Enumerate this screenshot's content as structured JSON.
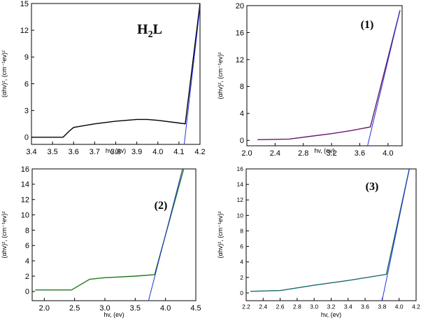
{
  "chart_data": [
    {
      "type": "line",
      "annotation": "H",
      "annotation_sub": "2",
      "annotation_tail": "L",
      "xlabel": "hv, (ev)",
      "ylabel": "(αhv)², (cm⁻¹ev)²",
      "xlim": [
        3.4,
        4.2
      ],
      "ylim": [
        -0.8,
        15
      ],
      "xticks": [
        3.4,
        3.5,
        3.6,
        3.7,
        3.8,
        3.9,
        4.0,
        4.1,
        4.2
      ],
      "yticks": [
        0,
        3,
        6,
        9,
        12,
        15
      ],
      "xtick_labels": [
        "3.4",
        "3.5",
        "3.6",
        "3.7",
        "3.8",
        "3.9",
        "4.0",
        "4.1",
        "4.2"
      ],
      "ytick_labels": [
        "0",
        "3",
        "6",
        "9",
        "12",
        "15"
      ],
      "series": [
        {
          "color": "#000000",
          "x": [
            3.4,
            3.55,
            3.58,
            3.6,
            3.7,
            3.8,
            3.9,
            3.95,
            4.0,
            4.1,
            4.13,
            4.2
          ],
          "y": [
            0,
            0,
            0.7,
            1.1,
            1.5,
            1.8,
            2.0,
            2.0,
            1.9,
            1.6,
            1.5,
            15
          ]
        },
        {
          "color": "#2233dd",
          "x": [
            4.125,
            4.2
          ],
          "y": [
            -0.8,
            14.6
          ]
        }
      ]
    },
    {
      "type": "line",
      "annotation": "(1)",
      "xlabel": "hv, (ev)",
      "ylabel": "(αhv)², (cm⁻¹ev)²",
      "xlim": [
        2.0,
        4.2
      ],
      "ylim": [
        -0.8,
        20
      ],
      "xticks": [
        2.0,
        2.4,
        2.8,
        3.2,
        3.6,
        4.0
      ],
      "yticks": [
        0,
        4,
        8,
        12,
        16,
        20
      ],
      "xtick_labels": [
        "2.0",
        "2.4",
        "2.8",
        "3.2",
        "3.6",
        "4.0"
      ],
      "ytick_labels": [
        "0",
        "4",
        "8",
        "12",
        "16",
        "20"
      ],
      "series": [
        {
          "color": "#6a1a6a",
          "x": [
            2.15,
            2.6,
            2.9,
            3.2,
            3.5,
            3.75,
            4.17
          ],
          "y": [
            0.1,
            0.2,
            0.6,
            1.0,
            1.5,
            2.0,
            19.3
          ]
        },
        {
          "color": "#2233dd",
          "x": [
            3.71,
            4.17
          ],
          "y": [
            -0.8,
            19.3
          ]
        }
      ]
    },
    {
      "type": "line",
      "annotation": "(2)",
      "xlabel": "hv, (ev)",
      "ylabel": "(αhv)², (cm⁻¹ev)²",
      "xlim": [
        1.8,
        4.5
      ],
      "ylim": [
        -1.2,
        16
      ],
      "xticks": [
        2.0,
        2.5,
        3.0,
        3.5,
        4.0,
        4.5
      ],
      "yticks": [
        0,
        2,
        4,
        6,
        8,
        10,
        12,
        14,
        16
      ],
      "xtick_labels": [
        "2.0",
        "2.5",
        "3.0",
        "3.5",
        "4.0",
        "4.5"
      ],
      "ytick_labels": [
        "0",
        "2",
        "4",
        "6",
        "8",
        "10",
        "12",
        "14",
        "16"
      ],
      "series": [
        {
          "color": "#1f7a1f",
          "x": [
            1.85,
            2.45,
            2.75,
            3.0,
            3.5,
            3.82,
            4.3
          ],
          "y": [
            0.2,
            0.2,
            1.6,
            1.8,
            2.0,
            2.2,
            16
          ]
        },
        {
          "color": "#2233dd",
          "x": [
            3.72,
            4.28
          ],
          "y": [
            -1.2,
            16
          ]
        }
      ]
    },
    {
      "type": "line",
      "annotation": "(3)",
      "xlabel": "hv, (ev)",
      "ylabel": "(αhv)², (cm⁻¹ev)²",
      "xlim": [
        2.2,
        4.2
      ],
      "ylim": [
        -1,
        16
      ],
      "xticks": [
        2.2,
        2.4,
        2.6,
        2.8,
        3.0,
        3.2,
        3.4,
        3.6,
        3.8,
        4.0,
        4.2
      ],
      "yticks": [
        0,
        2,
        4,
        6,
        8,
        10,
        12,
        14,
        16
      ],
      "xtick_labels": [
        "2.2",
        "2.4",
        "2.6",
        "2.8",
        "3.0",
        "3.2",
        "3.4",
        "3.6",
        "3.8",
        "4.0",
        "4.2"
      ],
      "ytick_labels": [
        "0",
        "2",
        "4",
        "6",
        "8",
        "10",
        "12",
        "14",
        "16"
      ],
      "series": [
        {
          "color": "#1a6a6a",
          "x": [
            2.25,
            2.6,
            3.0,
            3.4,
            3.85,
            4.12
          ],
          "y": [
            0.2,
            0.3,
            1.0,
            1.6,
            2.4,
            16
          ]
        },
        {
          "color": "#2233dd",
          "x": [
            3.8,
            4.12
          ],
          "y": [
            -1,
            16
          ]
        }
      ]
    }
  ]
}
